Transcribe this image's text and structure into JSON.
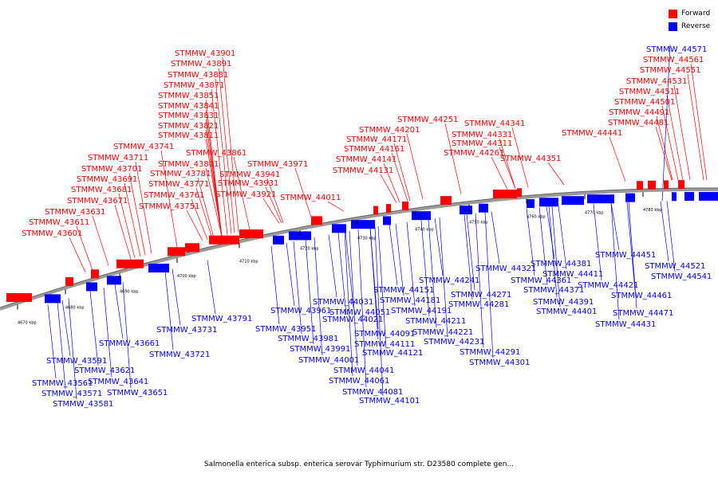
{
  "legend": {
    "forward_label": "Forward",
    "reverse_label": "Reverse",
    "forward_color": "#ff0000",
    "reverse_color": "#0000ff"
  },
  "caption": "Salmonella enterica subsp. enterica serovar Typhimurium str. D23580 complete gen...",
  "ticks": [
    "4670 kbp",
    "4680 kbp",
    "4690 kbp",
    "4700 kbp",
    "4710 kbp",
    "4720 kbp",
    "4730 kbp",
    "4740 kbp",
    "4750 kbp",
    "4760 kbp",
    "4770 kbp",
    "4780 kbp"
  ],
  "forward_genes": [
    "STMMW_43601",
    "STMMW_43611",
    "STMMW_43631",
    "STMMW_43671",
    "STMMW_43681",
    "STMMW_43691",
    "STMMW_43701",
    "STMMW_43711",
    "STMMW_43741",
    "STMMW_43751",
    "STMMW_43761",
    "STMMW_43771",
    "STMMW_43781",
    "STMMW_43801",
    "STMMW_43811",
    "STMMW_43821",
    "STMMW_43831",
    "STMMW_43841",
    "STMMW_43851",
    "STMMW_43861",
    "STMMW_43871",
    "STMMW_43881",
    "STMMW_43891",
    "STMMW_43901",
    "STMMW_43921",
    "STMMW_43931",
    "STMMW_43941",
    "STMMW_43971",
    "STMMW_44011",
    "STMMW_44131",
    "STMMW_44141",
    "STMMW_44161",
    "STMMW_44171",
    "STMMW_44201",
    "STMMW_44251",
    "STMMW_44261",
    "STMMW_44311",
    "STMMW_44331",
    "STMMW_44341",
    "STMMW_44351",
    "STMMW_44441",
    "STMMW_44481",
    "STMMW_44491",
    "STMMW_44501",
    "STMMW_44511",
    "STMMW_44531",
    "STMMW_44551",
    "STMMW_44561"
  ],
  "reverse_genes": [
    "STMMW_43561",
    "STMMW_43571",
    "STMMW_43581",
    "STMMW_43591",
    "STMMW_43621",
    "STMMW_43641",
    "STMMW_43651",
    "STMMW_43661",
    "STMMW_43721",
    "STMMW_43731",
    "STMMW_43791",
    "STMMW_43951",
    "STMMW_43961",
    "STMMW_43981",
    "STMMW_43991",
    "STMMW_44001",
    "STMMW_44021",
    "STMMW_44031",
    "STMMW_44041",
    "STMMW_44051",
    "STMMW_44061",
    "STMMW_44081",
    "STMMW_44091",
    "STMMW_44101",
    "STMMW_44111",
    "STMMW_44121",
    "STMMW_44151",
    "STMMW_44181",
    "STMMW_44191",
    "STMMW_44211",
    "STMMW_44221",
    "STMMW_44231",
    "STMMW_44241",
    "STMMW_44271",
    "STMMW_44281",
    "STMMW_44291",
    "STMMW_44301",
    "STMMW_44321",
    "STMMW_44361",
    "STMMW_44371",
    "STMMW_44381",
    "STMMW_44391",
    "STMMW_44401",
    "STMMW_44411",
    "STMMW_44421",
    "STMMW_44431",
    "STMMW_44451",
    "STMMW_44461",
    "STMMW_44471",
    "STMMW_44521",
    "STMMW_44541",
    "STMMW_44571"
  ]
}
